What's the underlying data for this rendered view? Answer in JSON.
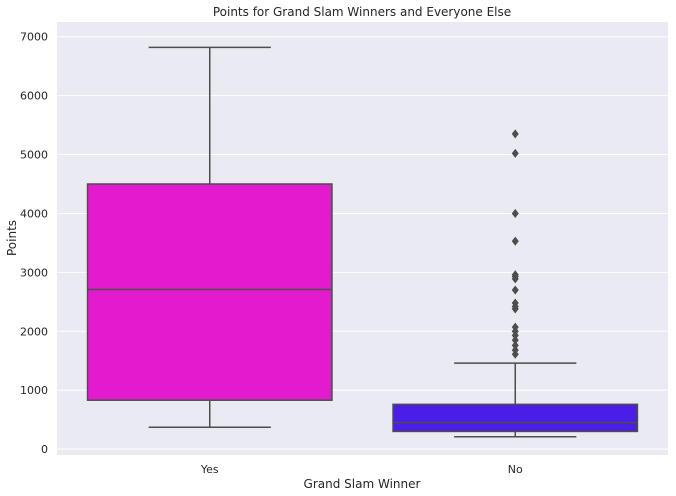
{
  "chart_data": {
    "type": "box",
    "title": "Points for Grand Slam Winners and Everyone Else",
    "xlabel": "Grand Slam Winner",
    "ylabel": "Points",
    "ylim": [
      -100,
      7250
    ],
    "yticks": [
      0,
      1000,
      2000,
      3000,
      4000,
      5000,
      6000,
      7000
    ],
    "grid": true,
    "categories": [
      "Yes",
      "No"
    ],
    "boxes": [
      {
        "category": "Yes",
        "color": "#e21bce",
        "whisker_low": 370,
        "q1": 830,
        "median": 2710,
        "q3": 4500,
        "whisker_high": 6820,
        "outliers": []
      },
      {
        "category": "No",
        "color": "#4a1ee6",
        "whisker_low": 210,
        "q1": 300,
        "median": 450,
        "q3": 760,
        "whisker_high": 1460,
        "outliers": [
          1610,
          1680,
          1760,
          1850,
          1930,
          2000,
          2070,
          2380,
          2420,
          2480,
          2700,
          2890,
          2930,
          2960,
          3530,
          4000,
          5020,
          5350
        ]
      }
    ]
  },
  "colors": {
    "plot_background": "#eaeaf2",
    "grid": "#ffffff",
    "line": "#4d4d4d"
  }
}
